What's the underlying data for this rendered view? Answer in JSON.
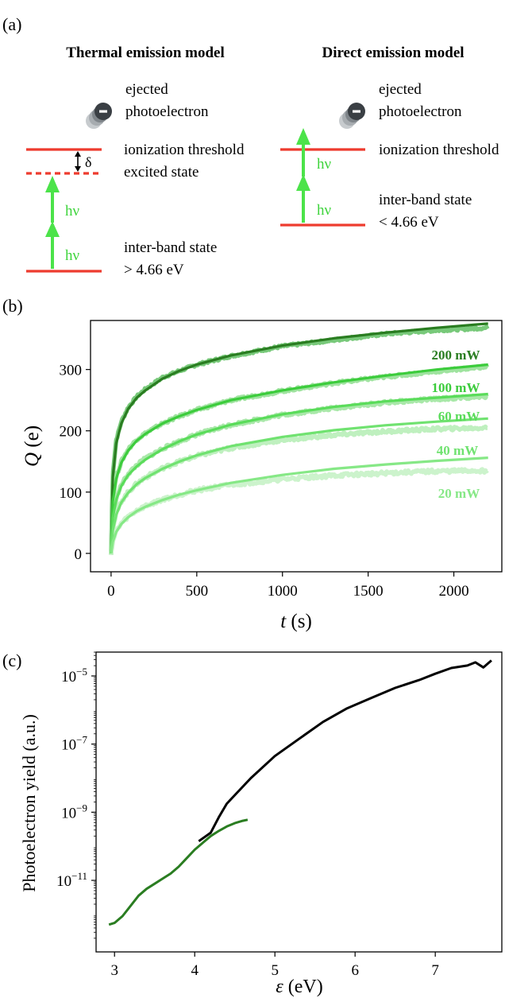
{
  "colors": {
    "level_line": "#ee3b2e",
    "arrow": "#4ce34a",
    "hv_text": "#3fd43d",
    "electron": "#3a3f44",
    "dark_green": "#2a7d21",
    "black_curve": "#000000"
  },
  "panel_a": {
    "label": "(a)",
    "left": {
      "title": "Thermal emission model",
      "ejected": "ejected",
      "photoelectron": "photoelectron",
      "threshold": "ionization threshold",
      "delta": "δ",
      "excited": "excited state",
      "hv1": "hν",
      "hv2": "hν",
      "band1": "inter-band state",
      "band2": "> 4.66 eV"
    },
    "right": {
      "title": "Direct emission model",
      "ejected": "ejected",
      "photoelectron": "photoelectron",
      "threshold": "ionization threshold",
      "hv1": "hν",
      "hv2": "hν",
      "band1": "inter-band state",
      "band2": "< 4.66 eV"
    }
  },
  "chart_data": [
    {
      "panel_label": "(b)",
      "type": "line",
      "title": "",
      "xlabel_var": "t",
      "xlabel_unit": " (s)",
      "ylabel_var": "Q",
      "ylabel_unit": " (e)",
      "xlim": [
        -120,
        2280
      ],
      "ylim": [
        -30,
        380
      ],
      "xticks": [
        0,
        500,
        1000,
        1500,
        2000
      ],
      "yticks": [
        0,
        100,
        200,
        300
      ],
      "grid": false,
      "legend": "inline labels at right",
      "x": [
        0,
        10,
        30,
        60,
        100,
        150,
        200,
        300,
        400,
        500,
        700,
        1000,
        1300,
        1600,
        1900,
        2200
      ],
      "series": [
        {
          "name": "200 mW",
          "color": "#2a7d21",
          "data_color": "#78c97a",
          "data": [
            0,
            130,
            185,
            215,
            238,
            256,
            268,
            287,
            298,
            308,
            322,
            338,
            348,
            358,
            364,
            368
          ],
          "fit": [
            0,
            125,
            180,
            212,
            236,
            254,
            266,
            285,
            298,
            308,
            323,
            339,
            351,
            360,
            368,
            375
          ]
        },
        {
          "name": "100 mW",
          "color": "#3ccc3c",
          "data_color": "#9fe39f",
          "data": [
            0,
            90,
            125,
            150,
            170,
            186,
            196,
            212,
            224,
            234,
            250,
            265,
            278,
            288,
            297,
            305
          ],
          "fit": [
            0,
            85,
            122,
            148,
            168,
            184,
            195,
            212,
            224,
            234,
            250,
            266,
            279,
            290,
            300,
            308
          ]
        },
        {
          "name": "60 mW",
          "color": "#5adc5a",
          "data_color": "#a9e8a9",
          "data": [
            0,
            60,
            90,
            112,
            130,
            144,
            155,
            171,
            183,
            194,
            210,
            226,
            237,
            246,
            252,
            256
          ],
          "fit": [
            0,
            58,
            88,
            110,
            128,
            142,
            153,
            170,
            183,
            194,
            210,
            227,
            239,
            248,
            254,
            260
          ]
        },
        {
          "name": "40 mW",
          "color": "#70e270",
          "data_color": "#bff0bf",
          "data": [
            0,
            40,
            65,
            85,
            100,
            114,
            124,
            139,
            150,
            159,
            172,
            185,
            193,
            199,
            203,
            205
          ],
          "fit": [
            0,
            38,
            63,
            83,
            99,
            113,
            123,
            138,
            150,
            160,
            175,
            190,
            201,
            209,
            215,
            220
          ]
        },
        {
          "name": "20 mW",
          "color": "#86e886",
          "data_color": "#ccf3cc",
          "data": [
            0,
            20,
            36,
            49,
            60,
            70,
            77,
            88,
            96,
            103,
            112,
            121,
            127,
            131,
            134,
            135
          ],
          "fit": [
            0,
            19,
            35,
            48,
            59,
            69,
            76,
            87,
            96,
            103,
            115,
            128,
            138,
            145,
            151,
            156
          ]
        }
      ]
    },
    {
      "panel_label": "(c)",
      "type": "line",
      "title": "",
      "xlabel_var": "ε",
      "xlabel_unit": " (eV)",
      "ylabel": "Photoelectron yield (a.u.)",
      "xlim": [
        2.77,
        7.83
      ],
      "ylim_log10": [
        -13.1,
        -4.3
      ],
      "yscale": "log",
      "xticks": [
        3,
        4,
        5,
        6,
        7
      ],
      "yticks_exp": [
        -11,
        -9,
        -7,
        -5
      ],
      "ytick_base": "10",
      "grid": false,
      "series": [
        {
          "color": "#000000",
          "x": [
            4.05,
            4.2,
            4.3,
            4.4,
            4.5,
            4.7,
            5.0,
            5.3,
            5.6,
            5.9,
            6.2,
            6.5,
            6.8,
            7.0,
            7.2,
            7.4,
            7.5,
            7.6,
            7.7
          ],
          "log10_y": [
            -9.85,
            -9.6,
            -9.15,
            -8.75,
            -8.5,
            -8.0,
            -7.35,
            -6.85,
            -6.35,
            -5.95,
            -5.65,
            -5.35,
            -5.1,
            -4.9,
            -4.82,
            -4.68,
            -4.62,
            -4.72,
            -4.6
          ]
        },
        {
          "color": "#2a7d21",
          "x": [
            2.93,
            3.0,
            3.1,
            3.2,
            3.3,
            3.4,
            3.5,
            3.6,
            3.7,
            3.8,
            3.9,
            4.0,
            4.1,
            4.2,
            4.3,
            4.4,
            4.5,
            4.6,
            4.66
          ],
          "log10_y": [
            -12.3,
            -12.25,
            -12.05,
            -11.75,
            -11.45,
            -11.25,
            -11.1,
            -10.95,
            -10.8,
            -10.6,
            -10.35,
            -10.1,
            -9.9,
            -9.7,
            -9.55,
            -9.42,
            -9.32,
            -9.25,
            -9.22
          ]
        }
      ]
    }
  ]
}
